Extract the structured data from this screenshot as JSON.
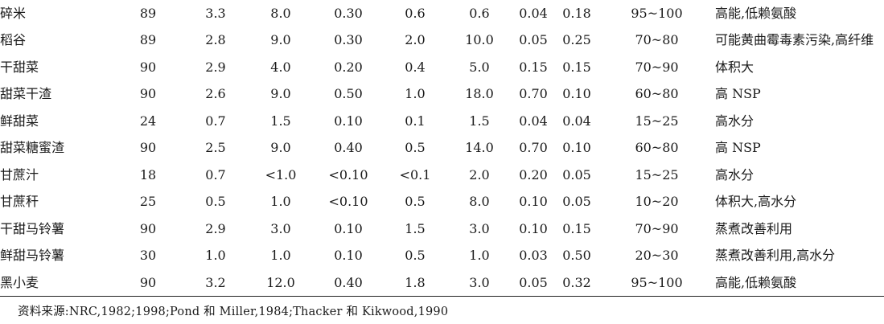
{
  "table": {
    "rows": [
      {
        "name": "碎米",
        "values": [
          "89",
          "3.3",
          "8.0",
          "0.30",
          "0.6",
          "0.6",
          "0.04",
          "0.18",
          "95~100"
        ],
        "note": "高能,低赖氨酸"
      },
      {
        "name": "稻谷",
        "values": [
          "89",
          "2.8",
          "9.0",
          "0.30",
          "2.0",
          "10.0",
          "0.05",
          "0.25",
          "70~80"
        ],
        "note": "可能黄曲霉毒素污染,高纤维"
      },
      {
        "name": "干甜菜",
        "values": [
          "90",
          "2.9",
          "4.0",
          "0.20",
          "0.4",
          "5.0",
          "0.15",
          "0.15",
          "70~90"
        ],
        "note": "体积大"
      },
      {
        "name": "甜菜干渣",
        "values": [
          "90",
          "2.6",
          "9.0",
          "0.50",
          "1.0",
          "18.0",
          "0.70",
          "0.10",
          "60~80"
        ],
        "note": "高 NSP"
      },
      {
        "name": "鲜甜菜",
        "values": [
          "24",
          "0.7",
          "1.5",
          "0.10",
          "0.1",
          "1.5",
          "0.04",
          "0.04",
          "15~25"
        ],
        "note": "高水分"
      },
      {
        "name": "甜菜糖蜜渣",
        "values": [
          "90",
          "2.5",
          "9.0",
          "0.40",
          "0.5",
          "14.0",
          "0.70",
          "0.10",
          "60~80"
        ],
        "note": "高 NSP"
      },
      {
        "name": "甘蔗汁",
        "values": [
          "18",
          "0.7",
          "<1.0",
          "<0.10",
          "<0.1",
          "2.0",
          "0.20",
          "0.05",
          "15~25"
        ],
        "note": "高水分"
      },
      {
        "name": "甘蔗秆",
        "values": [
          "25",
          "0.5",
          "1.0",
          "<0.10",
          "0.5",
          "8.0",
          "0.10",
          "0.05",
          "10~20"
        ],
        "note": "体积大,高水分"
      },
      {
        "name": "干甜马铃薯",
        "values": [
          "90",
          "2.9",
          "3.0",
          "0.10",
          "1.5",
          "3.0",
          "0.10",
          "0.15",
          "70~90"
        ],
        "note": "蒸煮改善利用"
      },
      {
        "name": "鲜甜马铃薯",
        "values": [
          "30",
          "1.0",
          "1.0",
          "0.10",
          "0.5",
          "1.0",
          "0.03",
          "0.50",
          "20~30"
        ],
        "note": "蒸煮改善利用,高水分"
      },
      {
        "name": "黑小麦",
        "values": [
          "90",
          "3.2",
          "12.0",
          "0.40",
          "1.8",
          "3.0",
          "0.05",
          "0.32",
          "95~100"
        ],
        "note": "高能,低赖氨酸"
      }
    ]
  },
  "source_note": "资料来源:NRC,1982;1998;Pond 和 Miller,1984;Thacker 和 Kikwood,1990"
}
